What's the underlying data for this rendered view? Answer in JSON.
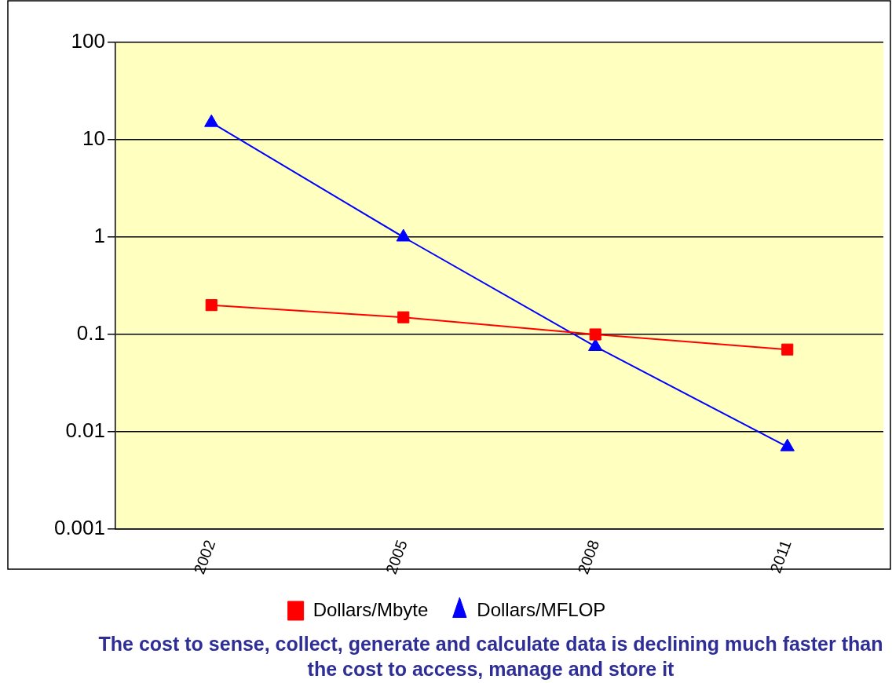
{
  "chart_data": {
    "type": "line",
    "categories": [
      "2002",
      "2005",
      "2008",
      "2011"
    ],
    "series": [
      {
        "name": "Dollars/Mbyte",
        "color": "#ff0000",
        "marker": "square",
        "values": [
          0.2,
          0.15,
          0.1,
          0.07
        ]
      },
      {
        "name": "Dollars/MFLOP",
        "color": "#0000ff",
        "marker": "triangle",
        "values": [
          15,
          1,
          0.075,
          0.007
        ]
      }
    ],
    "log": "y",
    "ylim": [
      0.001,
      100
    ],
    "yticks": [
      0.001,
      0.01,
      0.1,
      1,
      10,
      100
    ],
    "grid": "y",
    "legend": "bottom",
    "annotations": [
      "The cost to sense, collect, generate and calculate data is declining much faster than the cost to access, manage and store it"
    ]
  }
}
